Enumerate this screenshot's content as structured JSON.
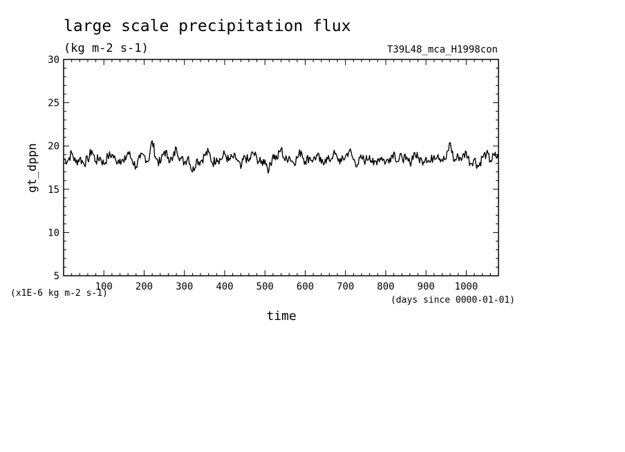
{
  "chart_data": {
    "type": "line",
    "title": "large scale precipitation flux",
    "subtitle": "(kg m-2 s-1)",
    "run_label": "T39L48_mca_H1998con",
    "xlabel": "time",
    "xunits": "(days since 0000-01-01)",
    "ylabel": "gt_dppn",
    "yunits": "(x1E-6 kg m-2 s-1)",
    "xlim": [
      0,
      1080
    ],
    "ylim": [
      5,
      30
    ],
    "x_ticks": [
      "100",
      "200",
      "300",
      "400",
      "500",
      "600",
      "700",
      "800",
      "900",
      "1000"
    ],
    "y_ticks": [
      "5",
      "10",
      "15",
      "20",
      "25",
      "30"
    ],
    "grid": false,
    "line_color": "#000000",
    "series_note": "noisy daily series fluctuating around 18.5, range ~16.9 to ~20.6",
    "series": [
      {
        "name": "",
        "x_start": 0,
        "x_step": 10,
        "values": [
          18.5,
          18.3,
          19.2,
          18.1,
          18.6,
          18.0,
          18.4,
          19.5,
          18.2,
          18.7,
          17.9,
          18.8,
          19.0,
          18.3,
          18.5,
          18.1,
          19.3,
          18.4,
          17.6,
          18.6,
          18.9,
          18.2,
          20.6,
          18.5,
          18.0,
          19.4,
          18.7,
          18.3,
          19.8,
          18.6,
          18.1,
          18.8,
          17.0,
          18.4,
          18.2,
          18.9,
          19.3,
          18.0,
          18.6,
          18.4,
          19.1,
          18.3,
          18.7,
          18.5,
          17.4,
          18.8,
          18.2,
          19.2,
          18.6,
          18.0,
          18.4,
          17.2,
          19.0,
          18.5,
          19.7,
          18.3,
          18.8,
          18.1,
          18.6,
          19.4,
          18.2,
          18.7,
          18.4,
          18.9,
          18.0,
          18.5,
          18.3,
          19.1,
          18.6,
          18.2,
          18.8,
          19.5,
          18.4,
          17.9,
          18.6,
          18.3,
          18.9,
          17.8,
          18.5,
          18.7,
          18.1,
          18.6,
          19.3,
          18.2,
          18.8,
          18.4,
          18.0,
          19.2,
          18.6,
          18.3,
          18.7,
          18.1,
          18.9,
          19.0,
          18.4,
          18.5,
          20.4,
          18.2,
          18.8,
          18.6,
          19.3,
          18.0,
          18.5,
          17.6,
          18.7,
          19.1,
          18.3,
          18.9,
          18.6
        ]
      }
    ]
  }
}
